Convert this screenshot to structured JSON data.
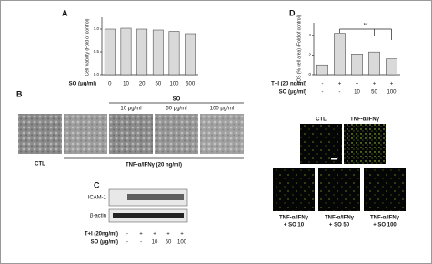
{
  "chart_data": [
    {
      "type": "bar",
      "panel": "A",
      "y_label": "Cell viability (Fold of control)",
      "x_label": "SO (μg/ml)",
      "categories": [
        "0",
        "10",
        "20",
        "50",
        "100",
        "500"
      ],
      "values": [
        1.0,
        1.02,
        1.0,
        0.98,
        0.95,
        0.9
      ],
      "color": "#d9d9d9",
      "ylim": [
        0,
        1.2
      ],
      "yticks": [
        {
          "value": 0,
          "label": "0.0"
        },
        {
          "value": 0.5,
          "label": "0.5"
        },
        {
          "value": 1,
          "label": "1.0"
        }
      ]
    },
    {
      "type": "bar",
      "panel": "D",
      "y_label": "ROS (% cell area) (Fold of control)",
      "categories": [
        null,
        null,
        null,
        null,
        null
      ],
      "values": [
        1.0,
        4.2,
        2.1,
        2.3,
        1.6
      ],
      "color": "#d9d9d9",
      "ylim": [
        0,
        5
      ],
      "yticks": [
        0,
        2,
        4
      ],
      "annotation": "**",
      "condition_rows": [
        {
          "label": "T+I (20 ng/ml)",
          "cells": [
            "-",
            "+",
            "+",
            "+",
            "+"
          ]
        },
        {
          "label": "SO (μg/ml)",
          "cells": [
            "-",
            "-",
            "10",
            "50",
            "100"
          ]
        }
      ]
    }
  ],
  "panel_b": {
    "letter": "B",
    "group_label": "SO",
    "dose_labels": [
      "10 μg/ml",
      "50 μg/ml",
      "100 μg/ml"
    ],
    "ctl_label": "CTL",
    "treatment_label": "TNF-α/IFNγ (20 ng/ml)"
  },
  "panel_c": {
    "letter": "C",
    "bands": [
      "ICAM-1",
      "β-actin"
    ],
    "condition_rows": [
      {
        "label": "T+I (20ng/ml)",
        "cells": [
          "-",
          "+",
          "+",
          "+",
          "+"
        ]
      },
      {
        "label": "SO (μg/ml)",
        "cells": [
          "-",
          "-",
          "10",
          "50",
          "100"
        ]
      }
    ]
  },
  "panel_d_images": {
    "top_labels": [
      "CTL",
      "TNF-α/IFNγ"
    ],
    "bottom_labels": [
      [
        "TNF-α/IFNγ",
        "+ SO 10"
      ],
      [
        "TNF-α/IFNγ",
        "+ SO 50"
      ],
      [
        "TNF-α/IFNγ",
        "+ SO 100"
      ]
    ]
  }
}
